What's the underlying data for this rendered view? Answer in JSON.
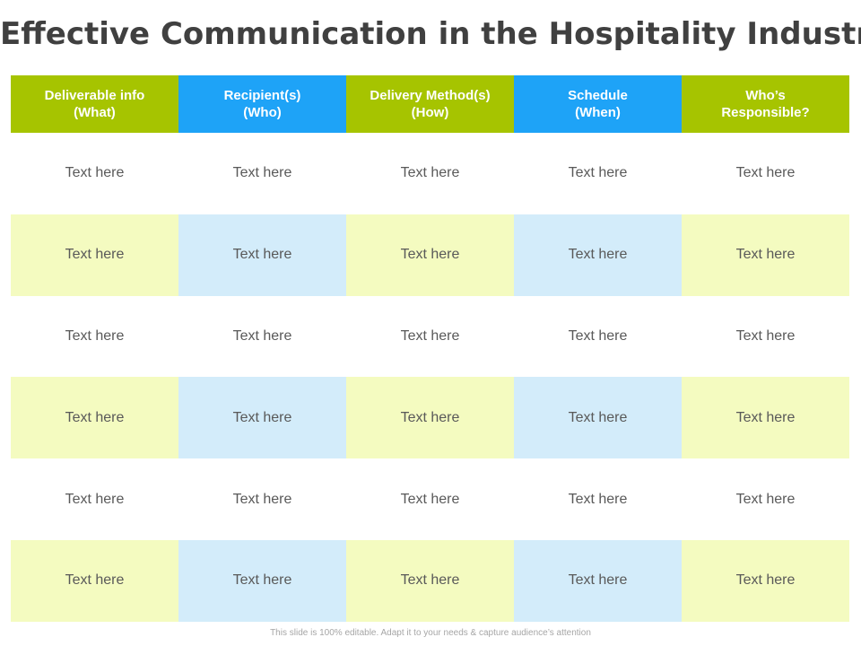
{
  "slide": {
    "title": "Effective Communication in the Hospitality Industry",
    "footer": "This slide is 100% editable. Adapt it to your needs & capture audience’s attention"
  },
  "colors": {
    "green": "#a6c400",
    "blue": "#1ea3f7",
    "light_green": "#f4fbc0",
    "light_blue": "#d3ecfa",
    "white": "#ffffff"
  },
  "table": {
    "headers": [
      "Deliverable info\n(What)",
      "Recipient(s)\n(Who)",
      "Delivery Method(s)\n(How)",
      "Schedule\n(When)",
      "Who’s\nResponsible?"
    ],
    "rows": [
      [
        "Text here",
        "Text here",
        "Text here",
        "Text here",
        "Text here"
      ],
      [
        "Text here",
        "Text here",
        "Text here",
        "Text here",
        "Text here"
      ],
      [
        "Text here",
        "Text here",
        "Text here",
        "Text here",
        "Text here"
      ],
      [
        "Text here",
        "Text here",
        "Text here",
        "Text here",
        "Text here"
      ],
      [
        "Text here",
        "Text here",
        "Text here",
        "Text here",
        "Text here"
      ],
      [
        "Text here",
        "Text here",
        "Text here",
        "Text here",
        "Text here"
      ]
    ]
  }
}
